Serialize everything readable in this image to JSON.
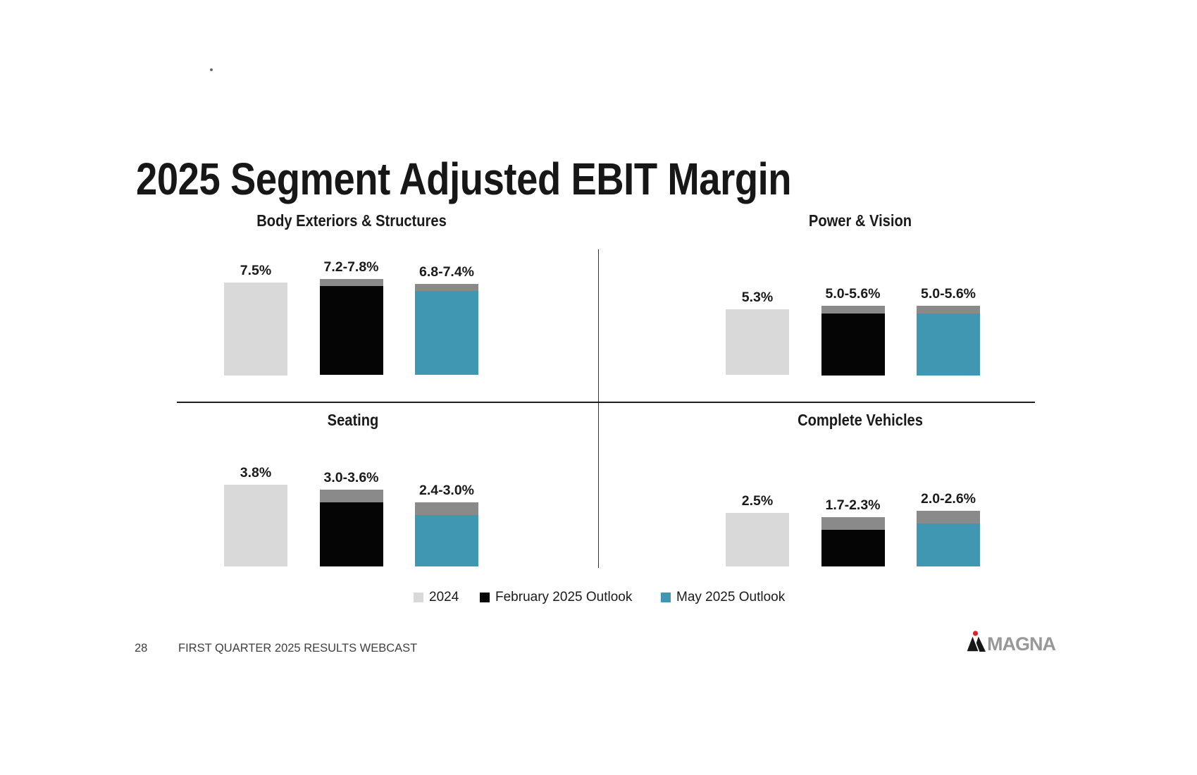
{
  "page_title": "2025 Segment Adjusted EBIT Margin",
  "colors": {
    "bar_2024": "#d9d9d9",
    "bar_feb_2025": "#050505",
    "bar_may_2025": "#3f97b1",
    "range_cap": "#8a8a8a",
    "divider_dark": "#242424",
    "text_dark": "#1a1a1a",
    "footer_text": "#404040",
    "magna_wordmark_gray": "#96989a",
    "magna_red": "#e41e26"
  },
  "chart_data": [
    {
      "type": "bar",
      "title": "Body Exteriors & Structures",
      "unit": "%",
      "value_axis_hidden": true,
      "series_names": [
        "2024",
        "February 2025 Outlook",
        "May 2025 Outlook"
      ],
      "bars": [
        {
          "series": "2024",
          "label": "7.5%",
          "value": 7.5
        },
        {
          "series": "February 2025 Outlook",
          "label": "7.2-7.8%",
          "low": 7.2,
          "high": 7.8
        },
        {
          "series": "May 2025 Outlook",
          "label": "6.8-7.4%",
          "low": 6.8,
          "high": 7.4
        }
      ]
    },
    {
      "type": "bar",
      "title": "Power & Vision",
      "unit": "%",
      "value_axis_hidden": true,
      "series_names": [
        "2024",
        "February 2025 Outlook",
        "May 2025 Outlook"
      ],
      "bars": [
        {
          "series": "2024",
          "label": "5.3%",
          "value": 5.3
        },
        {
          "series": "February 2025 Outlook",
          "label": "5.0-5.6%",
          "low": 5.0,
          "high": 5.6
        },
        {
          "series": "May 2025 Outlook",
          "label": "5.0-5.6%",
          "low": 5.0,
          "high": 5.6
        }
      ]
    },
    {
      "type": "bar",
      "title": "Seating",
      "unit": "%",
      "value_axis_hidden": true,
      "series_names": [
        "2024",
        "February 2025 Outlook",
        "May 2025 Outlook"
      ],
      "bars": [
        {
          "series": "2024",
          "label": "3.8%",
          "value": 3.8
        },
        {
          "series": "February 2025 Outlook",
          "label": "3.0-3.6%",
          "low": 3.0,
          "high": 3.6
        },
        {
          "series": "May 2025 Outlook",
          "label": "2.4-3.0%",
          "low": 2.4,
          "high": 3.0
        }
      ]
    },
    {
      "type": "bar",
      "title": "Complete Vehicles",
      "unit": "%",
      "value_axis_hidden": true,
      "series_names": [
        "2024",
        "February 2025 Outlook",
        "May 2025 Outlook"
      ],
      "bars": [
        {
          "series": "2024",
          "label": "2.5%",
          "value": 2.5
        },
        {
          "series": "February 2025 Outlook",
          "label": "1.7-2.3%",
          "low": 1.7,
          "high": 2.3
        },
        {
          "series": "May 2025 Outlook",
          "label": "2.0-2.6%",
          "low": 2.0,
          "high": 2.6
        }
      ]
    }
  ],
  "legend": {
    "items": [
      {
        "label": "2024",
        "color_key": "bar_2024"
      },
      {
        "label": "February 2025 Outlook",
        "color_key": "bar_feb_2025"
      },
      {
        "label": "May 2025 Outlook",
        "color_key": "bar_may_2025"
      }
    ]
  },
  "footer": {
    "page_number": "28",
    "text": "FIRST QUARTER 2025 RESULTS WEBCAST",
    "logo_wordmark": "MAGNA"
  }
}
